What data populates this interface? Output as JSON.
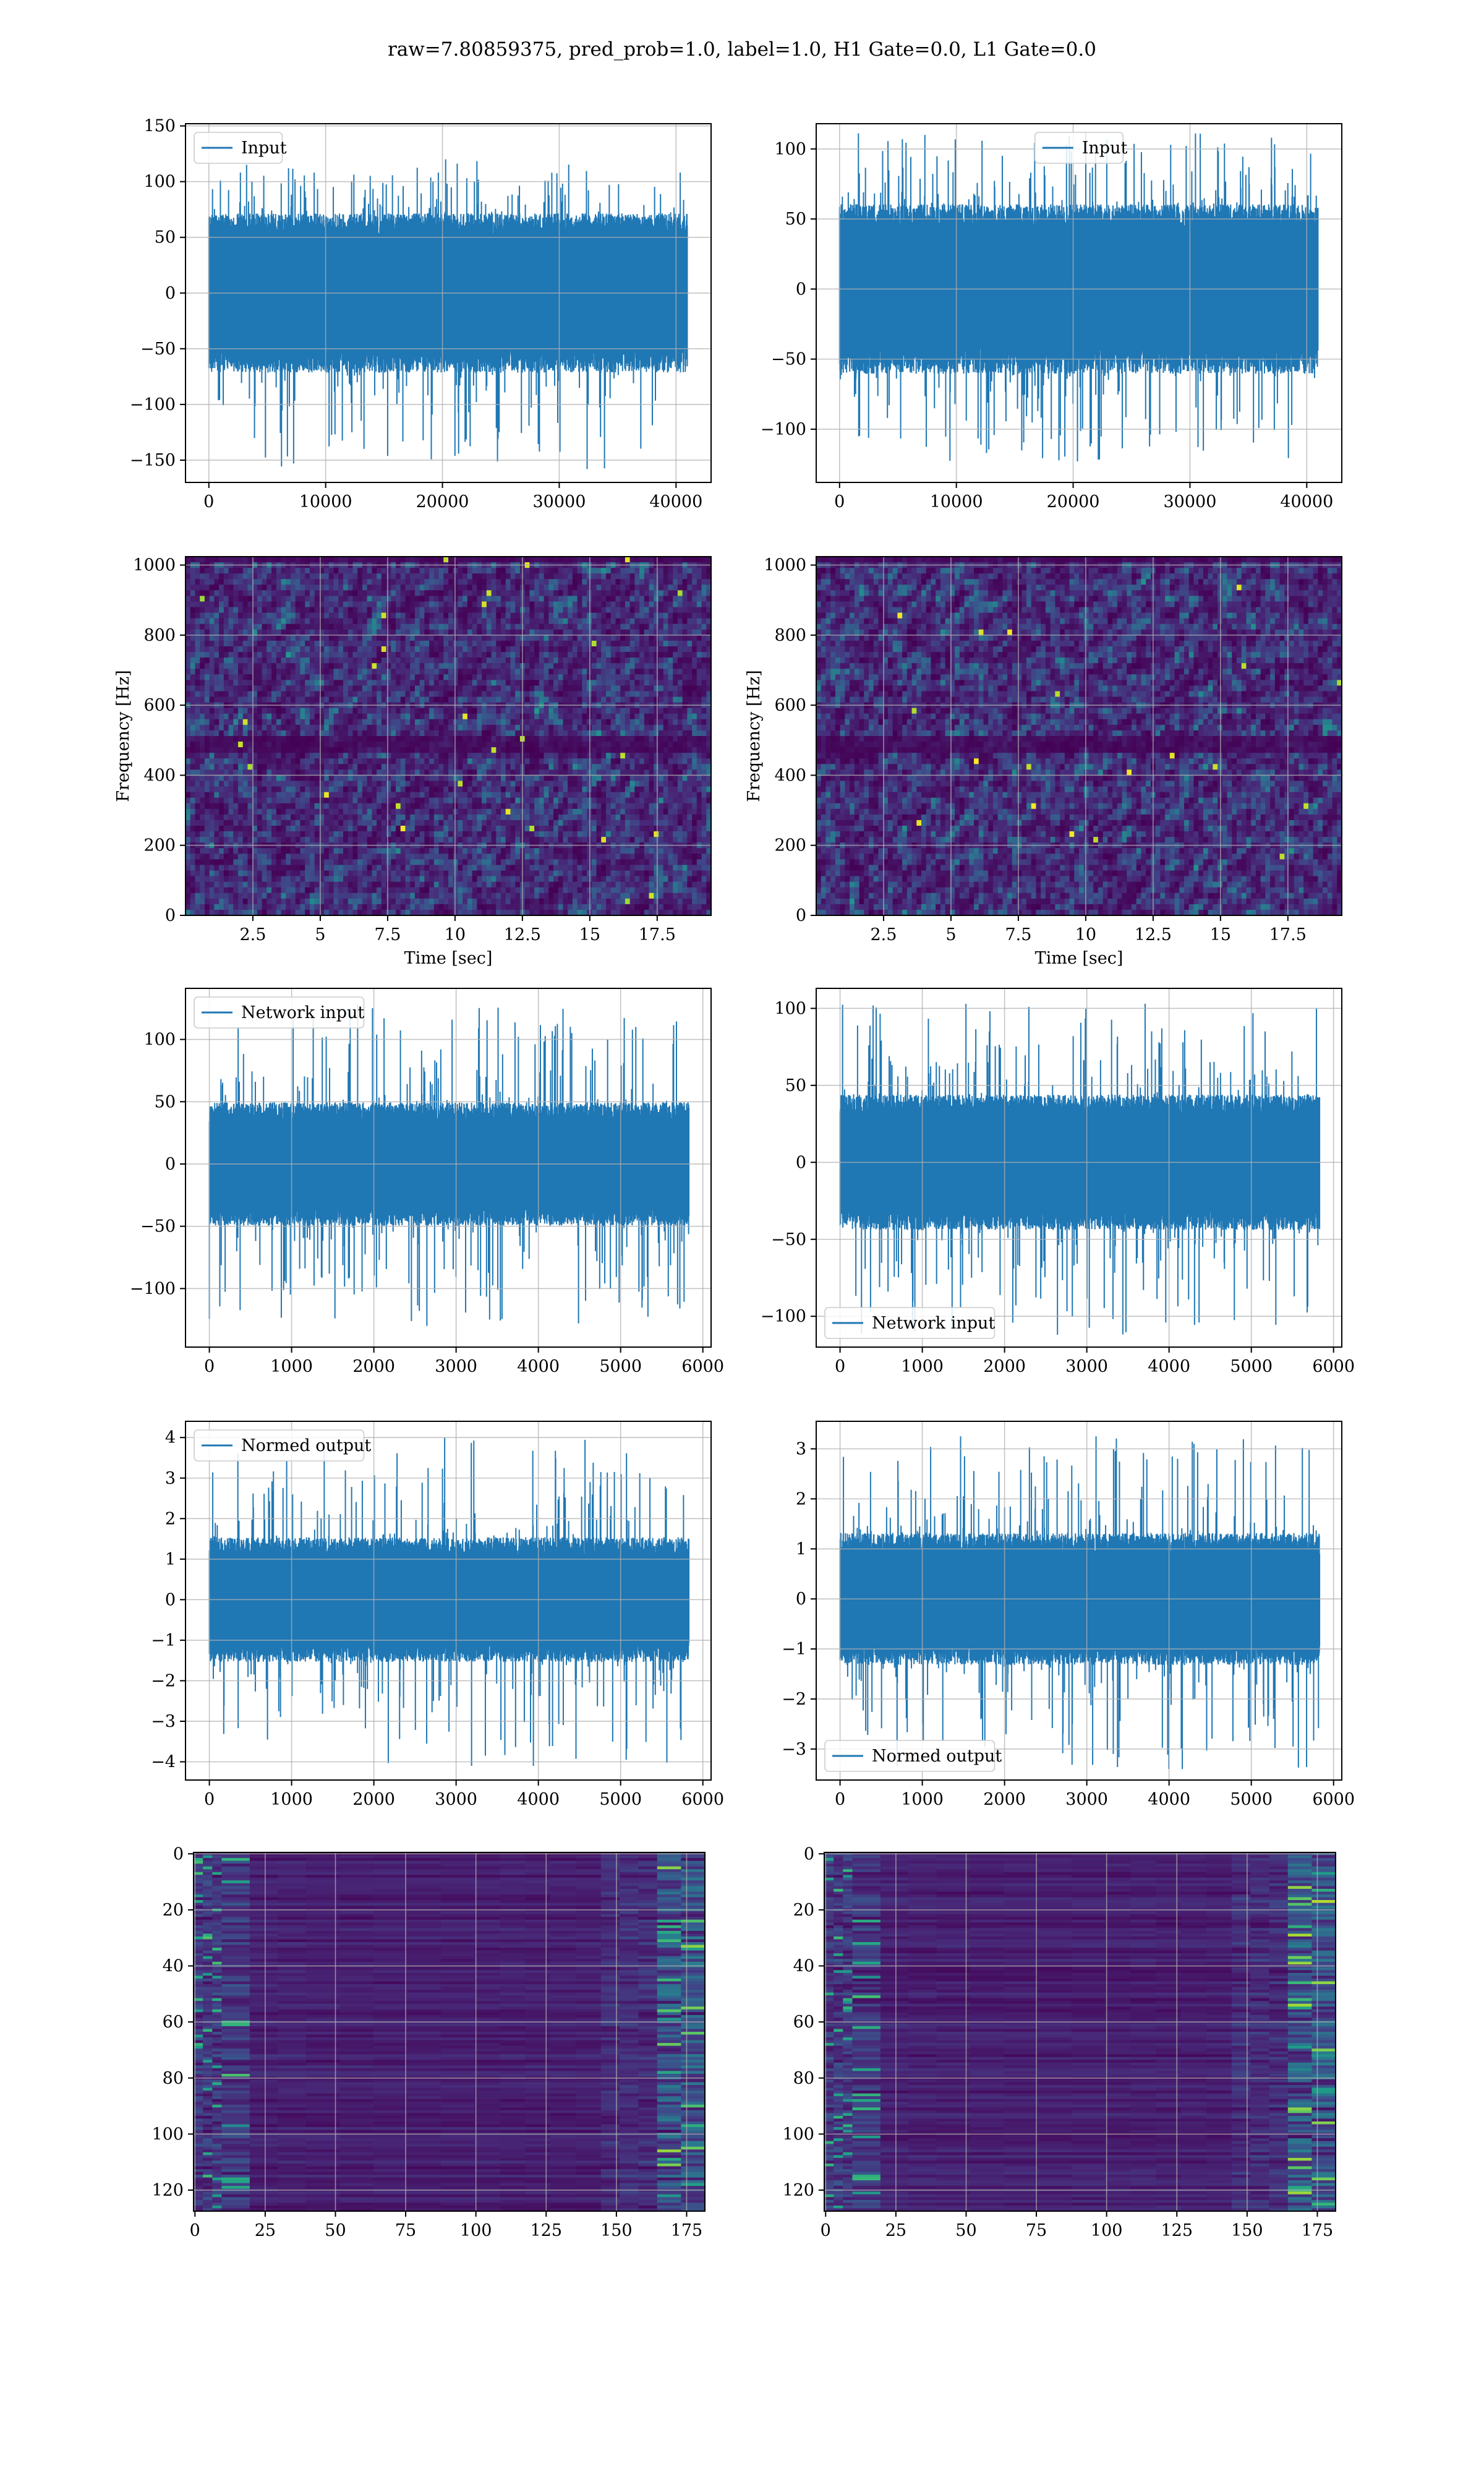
{
  "figure": {
    "suptitle": "raw=7.80859375, pred_prob=1.0, label=1.0, H1 Gate=0.0, L1 Gate=0.0"
  },
  "colors": {
    "line": "#1f77b4",
    "grid": "#b0b0b0",
    "viridis_dark": "#440154",
    "viridis_mid": "#21918c",
    "viridis_bright": "#fde725"
  },
  "chart_data": [
    {
      "id": "input-h1",
      "type": "line",
      "xlim": [
        -2000,
        43000
      ],
      "ylim": [
        -170,
        152
      ],
      "xticks": [
        0,
        10000,
        20000,
        30000,
        40000
      ],
      "yticks": [
        -150,
        -100,
        -50,
        0,
        50,
        100,
        150
      ],
      "xlabel": "",
      "ylabel": "",
      "grid": true,
      "legend": {
        "label": "Input",
        "position": "upper-left"
      },
      "series": [
        {
          "name": "Input",
          "x_range": [
            0,
            40960
          ],
          "body_amplitude": 65,
          "max": 120,
          "min": -158
        }
      ]
    },
    {
      "id": "input-l1",
      "type": "line",
      "xlim": [
        -2000,
        43000
      ],
      "ylim": [
        -138,
        118
      ],
      "xticks": [
        0,
        10000,
        20000,
        30000,
        40000
      ],
      "yticks": [
        -100,
        -50,
        0,
        50,
        100
      ],
      "xlabel": "",
      "ylabel": "",
      "grid": true,
      "legend": {
        "label": "Input",
        "position": "upper-center"
      },
      "series": [
        {
          "name": "Input",
          "x_range": [
            0,
            40960
          ],
          "body_amplitude": 55,
          "max": 112,
          "min": -123
        }
      ]
    },
    {
      "id": "spec-h1",
      "type": "heatmap",
      "xlim": [
        0,
        19.5
      ],
      "ylim": [
        0,
        1024
      ],
      "xticks": [
        2.5,
        5.0,
        7.5,
        10.0,
        12.5,
        15.0,
        17.5
      ],
      "yticks": [
        0,
        200,
        400,
        600,
        800,
        1000
      ],
      "xlabel": "Time [sec]",
      "ylabel": "Frequency [Hz]",
      "grid": true,
      "colormap": "viridis",
      "dark_band_hz": 500
    },
    {
      "id": "spec-l1",
      "type": "heatmap",
      "xlim": [
        0,
        19.5
      ],
      "ylim": [
        0,
        1024
      ],
      "xticks": [
        2.5,
        5.0,
        7.5,
        10.0,
        12.5,
        15.0,
        17.5
      ],
      "yticks": [
        0,
        200,
        400,
        600,
        800,
        1000
      ],
      "xlabel": "Time [sec]",
      "ylabel": "Frequency [Hz]",
      "grid": true,
      "colormap": "viridis",
      "dark_band_hz": 500
    },
    {
      "id": "net-h1",
      "type": "line",
      "xlim": [
        -290,
        6100
      ],
      "ylim": [
        -147,
        141
      ],
      "xticks": [
        0,
        1000,
        2000,
        3000,
        4000,
        5000,
        6000
      ],
      "yticks": [
        -100,
        -50,
        0,
        50,
        100
      ],
      "xlabel": "",
      "ylabel": "",
      "grid": true,
      "legend": {
        "label": "Network input",
        "position": "upper-left"
      },
      "series": [
        {
          "name": "Network input",
          "x_range": [
            0,
            5830
          ],
          "body_amplitude": 45,
          "max": 128,
          "min": -130
        }
      ]
    },
    {
      "id": "net-l1",
      "type": "line",
      "xlim": [
        -290,
        6100
      ],
      "ylim": [
        -120,
        113
      ],
      "xticks": [
        0,
        1000,
        2000,
        3000,
        4000,
        5000,
        6000
      ],
      "yticks": [
        -100,
        -50,
        0,
        50,
        100
      ],
      "xlabel": "",
      "ylabel": "",
      "grid": true,
      "legend": {
        "label": "Network input",
        "position": "lower-left"
      },
      "series": [
        {
          "name": "Network input",
          "x_range": [
            0,
            5830
          ],
          "body_amplitude": 40,
          "max": 103,
          "min": -112
        }
      ]
    },
    {
      "id": "norm-h1",
      "type": "line",
      "xlim": [
        -290,
        6100
      ],
      "ylim": [
        -4.45,
        4.4
      ],
      "xticks": [
        0,
        1000,
        2000,
        3000,
        4000,
        5000,
        6000
      ],
      "yticks": [
        -4,
        -3,
        -2,
        -1,
        0,
        1,
        2,
        3,
        4
      ],
      "xlabel": "",
      "ylabel": "",
      "grid": true,
      "legend": {
        "label": "Normed output",
        "position": "upper-left"
      },
      "series": [
        {
          "name": "Normed output",
          "x_range": [
            0,
            5830
          ],
          "body_amplitude": 1.4,
          "max": 4.0,
          "min": -4.1
        }
      ]
    },
    {
      "id": "norm-l1",
      "type": "line",
      "xlim": [
        -290,
        6100
      ],
      "ylim": [
        -3.62,
        3.55
      ],
      "xticks": [
        0,
        1000,
        2000,
        3000,
        4000,
        5000,
        6000
      ],
      "yticks": [
        -3,
        -2,
        -1,
        0,
        1,
        2,
        3
      ],
      "xlabel": "",
      "ylabel": "",
      "grid": true,
      "legend": {
        "label": "Normed output",
        "position": "lower-left"
      },
      "series": [
        {
          "name": "Normed output",
          "x_range": [
            0,
            5830
          ],
          "body_amplitude": 1.2,
          "max": 3.25,
          "min": -3.4
        }
      ]
    },
    {
      "id": "feat-h1",
      "type": "heatmap",
      "xlim": [
        -0.5,
        181.5
      ],
      "ylim": [
        127.5,
        -0.5
      ],
      "xticks": [
        0,
        25,
        50,
        75,
        100,
        125,
        150,
        175
      ],
      "yticks": [
        0,
        20,
        40,
        60,
        80,
        100,
        120
      ],
      "xlabel": "",
      "ylabel": "",
      "grid": true,
      "colormap": "viridis",
      "rows": 128,
      "cols": 182
    },
    {
      "id": "feat-l1",
      "type": "heatmap",
      "xlim": [
        -0.5,
        181.5
      ],
      "ylim": [
        127.5,
        -0.5
      ],
      "xticks": [
        0,
        25,
        50,
        75,
        100,
        125,
        150,
        175
      ],
      "yticks": [
        0,
        20,
        40,
        60,
        80,
        100,
        120
      ],
      "xlabel": "",
      "ylabel": "",
      "grid": true,
      "colormap": "viridis",
      "rows": 128,
      "cols": 182
    }
  ]
}
